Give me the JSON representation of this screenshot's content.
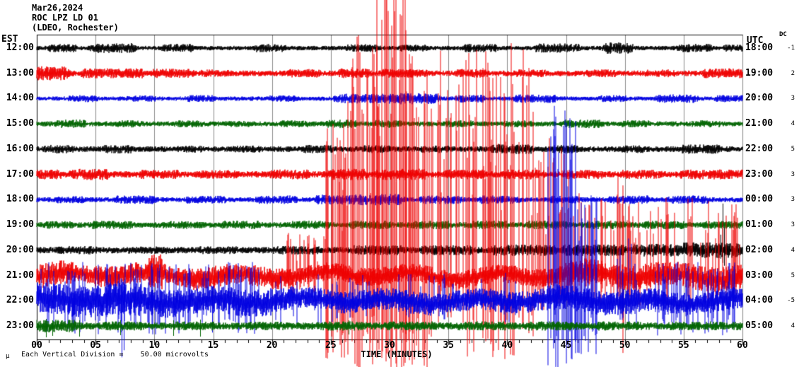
{
  "header": {
    "date": "Mar26,2024",
    "station": "ROC LPZ LD 01",
    "network": "(LDEO, Rochester)"
  },
  "axes": {
    "left_tz": "EST",
    "right_tz": "UTC",
    "dc_label": "DC",
    "x_label": "TIME (MINUTES)",
    "x_ticks": [
      "00",
      "05",
      "10",
      "15",
      "20",
      "25",
      "30",
      "35",
      "40",
      "45",
      "50",
      "55",
      "60"
    ]
  },
  "footer": {
    "mu": "µ",
    "scale_note": "Each Vertical Division =    50.00 microvolts"
  },
  "chart_data": {
    "type": "seismogram-helicorder",
    "title": "ROC LPZ LD 01 (LDEO, Rochester) Mar26,2024",
    "x_range_minutes": [
      0,
      60
    ],
    "minor_tick_minutes": 1,
    "major_tick_minutes": 5,
    "vertical_division_microvolts": 50.0,
    "colors": {
      "black": "#000000",
      "red": "#ee0000",
      "blue": "#0000e0",
      "green": "#006400",
      "grid": "#8a8a8a"
    },
    "rows": [
      {
        "est": "12:00",
        "utc": "18:00",
        "dc": "-1",
        "color": "black",
        "base": 3.2,
        "bursts": [
          [
            1.2,
            3.2,
            6
          ],
          [
            4.8,
            8.2,
            7
          ],
          [
            10.8,
            13.2,
            6
          ],
          [
            18.6,
            21,
            6
          ],
          [
            26.5,
            29,
            5.5
          ],
          [
            31,
            33,
            5
          ],
          [
            36.5,
            39,
            6
          ],
          [
            42.5,
            46,
            6.5
          ],
          [
            48.3,
            50.6,
            8
          ],
          [
            54.6,
            57.2,
            6
          ],
          [
            58.5,
            60,
            5
          ]
        ]
      },
      {
        "est": "13:00",
        "utc": "19:00",
        "dc": "2",
        "color": "red",
        "base": 4,
        "bursts": [
          [
            0,
            2.6,
            10
          ],
          [
            3.8,
            9,
            7
          ],
          [
            9.8,
            13.2,
            6.5
          ],
          [
            14,
            16.2,
            5.5
          ],
          [
            21.5,
            24,
            6
          ],
          [
            25.8,
            28.2,
            7
          ],
          [
            29.5,
            33,
            6.5
          ],
          [
            35.8,
            38.2,
            6
          ],
          [
            40.8,
            43.2,
            5.5
          ],
          [
            46.8,
            49.2,
            5.5
          ],
          [
            51.8,
            54.2,
            5.5
          ],
          [
            56.8,
            60,
            7
          ]
        ]
      },
      {
        "est": "14:00",
        "utc": "20:00",
        "dc": "3",
        "color": "blue",
        "base": 3,
        "bursts": [
          [
            2.8,
            5,
            5
          ],
          [
            7.8,
            10,
            4.5
          ],
          [
            12.8,
            15,
            5
          ],
          [
            19.8,
            22,
            4.5
          ],
          [
            25.5,
            30,
            7
          ],
          [
            30,
            34,
            8
          ],
          [
            35.8,
            38,
            5.5
          ],
          [
            40.8,
            44,
            6
          ],
          [
            47.8,
            50,
            5
          ],
          [
            52.8,
            56,
            6
          ],
          [
            57.8,
            60,
            5
          ]
        ]
      },
      {
        "est": "15:00",
        "utc": "21:00",
        "dc": "4",
        "color": "green",
        "base": 3.5,
        "bursts": [
          [
            1.8,
            4,
            6
          ],
          [
            6.8,
            9,
            5
          ],
          [
            11.8,
            14,
            5
          ],
          [
            15.8,
            18,
            4.5
          ],
          [
            20.8,
            23,
            5
          ],
          [
            24.8,
            27,
            6
          ],
          [
            28.8,
            31,
            5.5
          ],
          [
            34.8,
            37,
            5
          ],
          [
            39.8,
            42,
            5
          ],
          [
            44.8,
            48,
            6
          ],
          [
            49.8,
            52,
            5
          ],
          [
            55.8,
            58,
            5
          ]
        ]
      },
      {
        "est": "16:00",
        "utc": "22:00",
        "dc": "5",
        "color": "black",
        "base": 4,
        "bursts": [
          [
            0.8,
            3,
            6
          ],
          [
            5.8,
            8,
            6
          ],
          [
            11.8,
            14,
            5
          ],
          [
            16.8,
            19,
            5
          ],
          [
            22.8,
            25,
            6
          ],
          [
            27.8,
            30,
            5.5
          ],
          [
            32.8,
            35,
            5.5
          ],
          [
            38.8,
            42,
            7
          ],
          [
            43.8,
            46,
            6
          ],
          [
            49.8,
            52,
            5.5
          ],
          [
            54.8,
            58,
            6.5
          ]
        ]
      },
      {
        "est": "17:00",
        "utc": "23:00",
        "dc": "3",
        "color": "red",
        "base": 4.5,
        "bursts": [
          [
            0,
            2,
            7
          ],
          [
            3,
            6,
            8
          ],
          [
            8.8,
            12,
            6.5
          ],
          [
            13.8,
            17,
            6
          ],
          [
            19.8,
            23,
            7
          ],
          [
            24.8,
            28,
            8
          ],
          [
            29,
            33,
            8
          ],
          [
            34.8,
            38,
            7
          ],
          [
            39.8,
            43,
            7
          ],
          [
            44.8,
            48,
            6.5
          ],
          [
            49.8,
            53,
            6.5
          ],
          [
            54.8,
            60,
            7
          ]
        ]
      },
      {
        "est": "18:00",
        "utc": "00:00",
        "dc": "3",
        "color": "blue",
        "base": 3.5,
        "bursts": [
          [
            1.8,
            4,
            5
          ],
          [
            6.8,
            10,
            6
          ],
          [
            12.8,
            16,
            5.5
          ],
          [
            18.8,
            22,
            6
          ],
          [
            23.8,
            27,
            7
          ],
          [
            27,
            31,
            8
          ],
          [
            32.8,
            36,
            6
          ],
          [
            37.8,
            41,
            6
          ],
          [
            43.8,
            46,
            5.5
          ],
          [
            48.8,
            52,
            6
          ],
          [
            53.8,
            57,
            6
          ]
        ]
      },
      {
        "est": "19:00",
        "utc": "01:00",
        "dc": "3",
        "color": "green",
        "base": 4,
        "bursts": [
          [
            0.8,
            3,
            5.5
          ],
          [
            4.8,
            8,
            6
          ],
          [
            10.8,
            14,
            5.5
          ],
          [
            15.8,
            19,
            6
          ],
          [
            21.8,
            25,
            6
          ],
          [
            26.8,
            30,
            6
          ],
          [
            31.8,
            35,
            6
          ],
          [
            36.8,
            40,
            6
          ],
          [
            41.8,
            45,
            6
          ],
          [
            46.8,
            50,
            6
          ],
          [
            51.8,
            55,
            6
          ],
          [
            56.8,
            60,
            5.5
          ]
        ]
      },
      {
        "est": "20:00",
        "utc": "02:00",
        "dc": "4",
        "color": "black",
        "base": 4.5,
        "bursts": [
          [
            1.8,
            5,
            6
          ],
          [
            7.8,
            11,
            5.5
          ],
          [
            13.8,
            17,
            5.5
          ],
          [
            19.8,
            24,
            6
          ],
          [
            26.8,
            31,
            7
          ],
          [
            32.8,
            37,
            7
          ],
          [
            38.8,
            44,
            8
          ],
          [
            44.8,
            50,
            8
          ],
          [
            50.8,
            55,
            9
          ],
          [
            55,
            60,
            11
          ]
        ],
        "spikes": [
          [
            58.3,
            66,
            18
          ],
          [
            58.45,
            32,
            22
          ],
          [
            58.15,
            22,
            12
          ]
        ]
      },
      {
        "est": "21:00",
        "utc": "03:00",
        "dc": "5",
        "color": "red",
        "base": 13,
        "wander": 6,
        "bursts": [
          [
            0,
            3,
            17
          ],
          [
            5,
            9,
            15
          ],
          [
            9.6,
            10.6,
            26
          ],
          [
            13,
            17,
            16
          ],
          [
            18,
            21,
            15
          ],
          [
            45,
            60,
            18
          ]
        ],
        "events": [
          [
            21.3,
            24.5,
            60,
            28,
            0.35
          ],
          [
            24.5,
            26.3,
            220,
            120,
            0.5
          ],
          [
            26.3,
            28.9,
            340,
            135,
            0.55
          ],
          [
            28.9,
            31.4,
            460,
            135,
            0.55
          ],
          [
            31.4,
            33.6,
            330,
            135,
            0.5
          ],
          [
            33.6,
            36.5,
            320,
            70,
            0.45
          ],
          [
            36.5,
            42.3,
            330,
            120,
            0.5
          ],
          [
            42.3,
            45.2,
            200,
            50,
            0.4
          ],
          [
            45.2,
            48.8,
            120,
            40,
            0.3
          ],
          [
            48.9,
            49.9,
            150,
            110,
            0.45
          ],
          [
            50.2,
            60,
            110,
            45,
            0.25
          ]
        ]
      },
      {
        "est": "22:00",
        "utc": "04:00",
        "dc": "-5",
        "color": "blue",
        "base": 16,
        "wander": 5,
        "bursts": [
          [
            0,
            6,
            22
          ],
          [
            6,
            9,
            24
          ],
          [
            9,
            20,
            20
          ],
          [
            20,
            26,
            16
          ],
          [
            26,
            34,
            14
          ],
          [
            34,
            43,
            16
          ],
          [
            43,
            52,
            18
          ],
          [
            52,
            60,
            16
          ]
        ],
        "events": [
          [
            0.3,
            19,
            55,
            48,
            0.25
          ],
          [
            20,
            43,
            40,
            35,
            0.12
          ],
          [
            43.4,
            45.8,
            280,
            95,
            0.5
          ],
          [
            45.8,
            47.6,
            150,
            90,
            0.45
          ],
          [
            49.3,
            51,
            90,
            45,
            0.35
          ],
          [
            52.5,
            59.5,
            55,
            50,
            0.3
          ]
        ],
        "spikes": [
          [
            7.2,
            30,
            80
          ],
          [
            7.4,
            24,
            70
          ],
          [
            14.9,
            20,
            45
          ]
        ]
      },
      {
        "est": "23:00",
        "utc": "05:00",
        "dc": "4",
        "color": "green",
        "base": 5,
        "bursts": [
          [
            0,
            3.2,
            9
          ],
          [
            5.8,
            9,
            6.5
          ],
          [
            11.8,
            15,
            6.5
          ],
          [
            17.8,
            21,
            6
          ],
          [
            23.8,
            28,
            6.5
          ],
          [
            29.8,
            34,
            6.5
          ],
          [
            35.8,
            40,
            6.5
          ],
          [
            41.8,
            46,
            6.5
          ],
          [
            47.8,
            52,
            6.5
          ],
          [
            53.8,
            58,
            6.5
          ],
          [
            58,
            60,
            6
          ]
        ],
        "spikes": [
          [
            0.8,
            10,
            16
          ],
          [
            1.3,
            8,
            14
          ],
          [
            3.6,
            8,
            15
          ],
          [
            7.1,
            8,
            13
          ],
          [
            11.6,
            8,
            14
          ],
          [
            13.9,
            9,
            15
          ],
          [
            26.5,
            8,
            12
          ]
        ]
      }
    ]
  }
}
